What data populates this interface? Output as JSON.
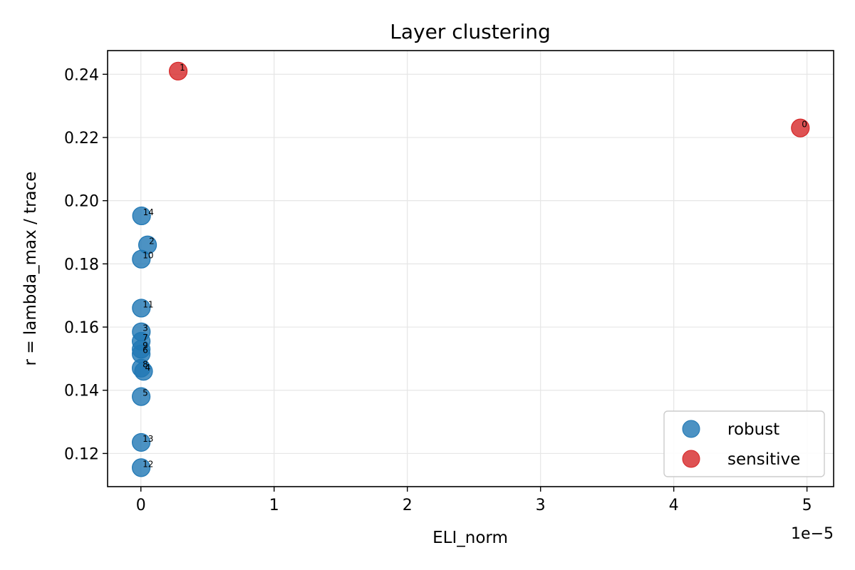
{
  "chart_data": {
    "type": "scatter",
    "title": "Layer clustering",
    "xlabel": "ELI_norm",
    "ylabel": "r = lambda_max / trace",
    "x_offset_text": "1e−5",
    "xlim": [
      -2.5e-06,
      5.2e-05
    ],
    "ylim": [
      0.1095,
      0.2475
    ],
    "x_ticks": [
      0,
      1e-05,
      2e-05,
      3e-05,
      4e-05,
      5e-05
    ],
    "x_tick_labels": [
      "0",
      "1",
      "2",
      "3",
      "4",
      "5"
    ],
    "y_ticks": [
      0.12,
      0.14,
      0.16,
      0.18,
      0.2,
      0.22,
      0.24
    ],
    "y_tick_labels": [
      "0.12",
      "0.14",
      "0.16",
      "0.18",
      "0.20",
      "0.22",
      "0.24"
    ],
    "grid": true,
    "legend_position": "bottom-right",
    "series": [
      {
        "name": "robust",
        "color": "#1f77b4",
        "points": [
          {
            "label": "14",
            "x": 5e-08,
            "y": 0.1952
          },
          {
            "label": "2",
            "x": 5e-07,
            "y": 0.186
          },
          {
            "label": "10",
            "x": 3e-08,
            "y": 0.1815
          },
          {
            "label": "11",
            "x": 3e-08,
            "y": 0.166
          },
          {
            "label": "3",
            "x": 3e-08,
            "y": 0.1585
          },
          {
            "label": "7",
            "x": 2e-08,
            "y": 0.1555
          },
          {
            "label": "9",
            "x": 2e-08,
            "y": 0.153
          },
          {
            "label": "6",
            "x": 2e-08,
            "y": 0.1515
          },
          {
            "label": "8",
            "x": 2e-08,
            "y": 0.147
          },
          {
            "label": "4",
            "x": 2e-07,
            "y": 0.146
          },
          {
            "label": "5",
            "x": 2e-08,
            "y": 0.138
          },
          {
            "label": "13",
            "x": 2e-08,
            "y": 0.1235
          },
          {
            "label": "12",
            "x": 2e-08,
            "y": 0.1155
          }
        ]
      },
      {
        "name": "sensitive",
        "color": "#d62728",
        "points": [
          {
            "label": "1",
            "x": 2.8e-06,
            "y": 0.241
          },
          {
            "label": "0",
            "x": 4.95e-05,
            "y": 0.223
          }
        ]
      }
    ]
  }
}
